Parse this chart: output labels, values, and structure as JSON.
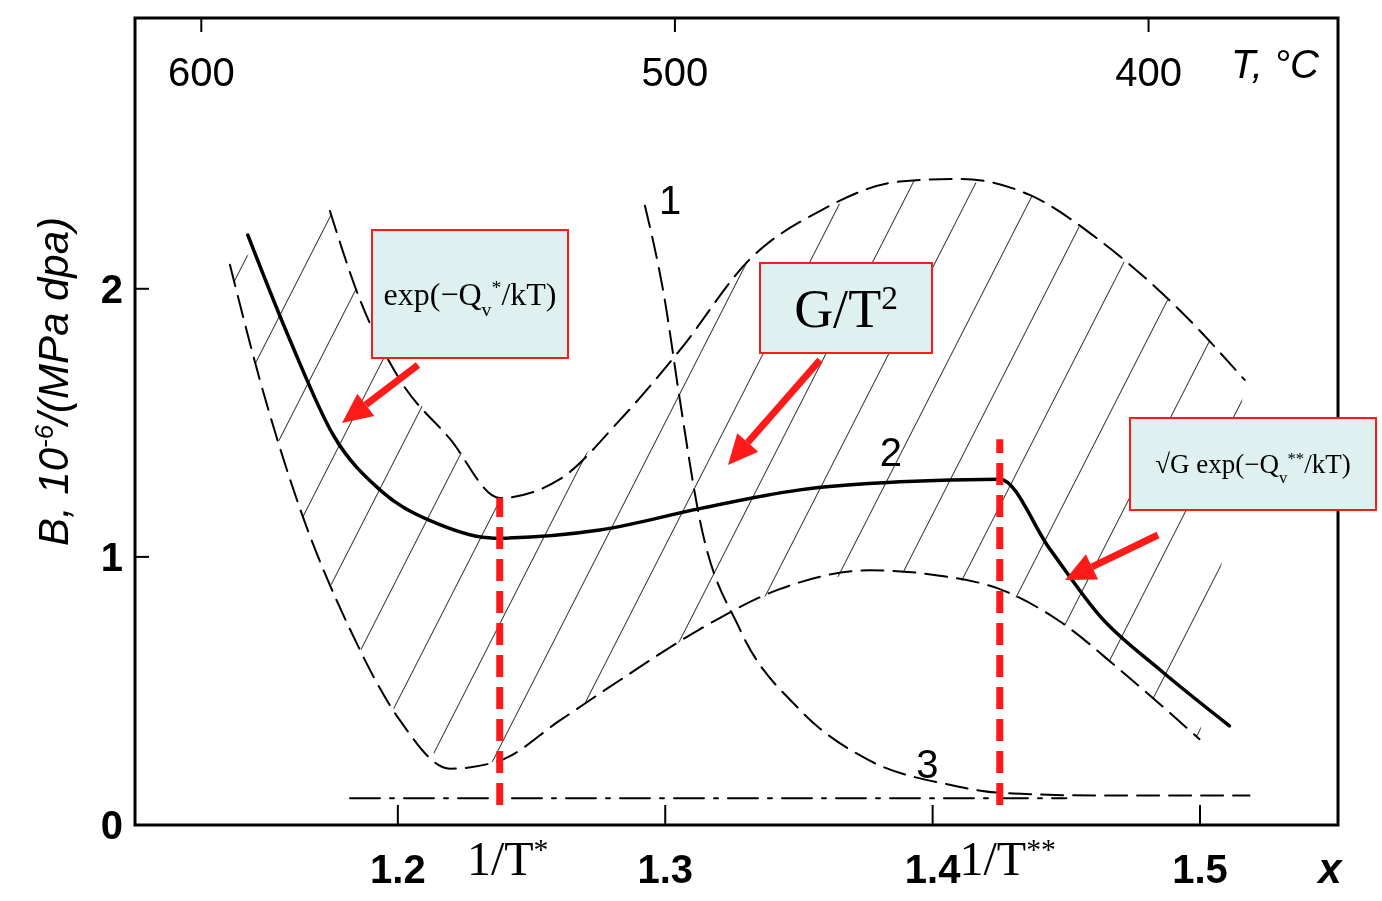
{
  "chart_data": {
    "type": "line",
    "xlabel": "x",
    "ylabel": "B, 10$^{-6}$/(MPa dpa)",
    "x2label": "T, °C",
    "xlim": [
      1.1017,
      1.5516
    ],
    "xticks": [
      1.2,
      1.3,
      1.4,
      1.5
    ],
    "ylim": [
      0,
      3.01
    ],
    "yticks": [
      0,
      1,
      2
    ],
    "x2lim": [
      614,
      360
    ],
    "x2ticks": [
      600,
      500,
      400
    ],
    "grid": false,
    "series": [
      {
        "name": "1",
        "color": "#000000",
        "line_style": "dashed",
        "x": [
          1.2924,
          1.2998,
          1.3054,
          1.3129,
          1.3279,
          1.3503,
          1.3765,
          1.4064,
          1.4251,
          1.4625,
          1.5185
        ],
        "values": [
          2.31,
          1.96,
          1.59,
          1.14,
          0.73,
          0.43,
          0.24,
          0.15,
          0.12,
          0.11,
          0.11
        ]
      },
      {
        "name": "2",
        "color": "#000000",
        "line_style": "solid",
        "x": [
          1.1439,
          1.1596,
          1.1761,
          1.1933,
          1.2157,
          1.2359,
          1.2755,
          1.3129,
          1.3503,
          1.3877,
          1.4251,
          1.4438,
          1.4625,
          1.4849,
          1.511
        ],
        "values": [
          2.2,
          1.81,
          1.45,
          1.25,
          1.12,
          1.07,
          1.1,
          1.18,
          1.25,
          1.28,
          1.29,
          1.03,
          0.78,
          0.58,
          0.37
        ]
      },
      {
        "name": "3",
        "color": "#000000",
        "line_style": "dashdot",
        "x": [
          1.1821,
          1.45
        ],
        "values": [
          0.1,
          0.1
        ]
      },
      {
        "color": "#000000",
        "line_style": "dashed",
        "x": [
          1.1746,
          1.1858,
          1.2008,
          1.2195,
          1.2381,
          1.2606,
          1.283,
          1.3054,
          1.3316,
          1.3578,
          1.3877,
          1.4101,
          1.4363,
          1.4625,
          1.4924,
          1.5167
        ],
        "values": [
          2.29,
          1.96,
          1.66,
          1.44,
          1.22,
          1.29,
          1.51,
          1.77,
          2.11,
          2.29,
          2.4,
          2.41,
          2.35,
          2.18,
          1.92,
          1.66
        ]
      },
      {
        "color": "#000000",
        "line_style": "dashed",
        "x": [
          1.1372,
          1.1484,
          1.1634,
          1.1821,
          1.2008,
          1.2195,
          1.2381,
          1.2606,
          1.283,
          1.3129,
          1.3428,
          1.3765,
          1.4026,
          1.4251,
          1.4475,
          1.4699,
          1.4998
        ],
        "values": [
          2.09,
          1.66,
          1.18,
          0.73,
          0.39,
          0.21,
          0.24,
          0.39,
          0.54,
          0.73,
          0.88,
          0.95,
          0.93,
          0.88,
          0.76,
          0.58,
          0.32
        ]
      }
    ],
    "ref_lines": [
      {
        "axis": "x",
        "value": 1.2381,
        "label": "1/T$^{*}$",
        "color": "#ff1a1a",
        "line_style": "dashed"
      },
      {
        "axis": "x",
        "value": 1.4251,
        "label": "1/T$^{**}$",
        "color": "#ff1a1a",
        "line_style": "dashed"
      }
    ],
    "annotations": [
      "exp(−Q$_{v}$$^{*}$/kT)",
      "G/T$^{2}$",
      "√G exp(−Q$_{v}$$^{**}$/kT)"
    ]
  }
}
